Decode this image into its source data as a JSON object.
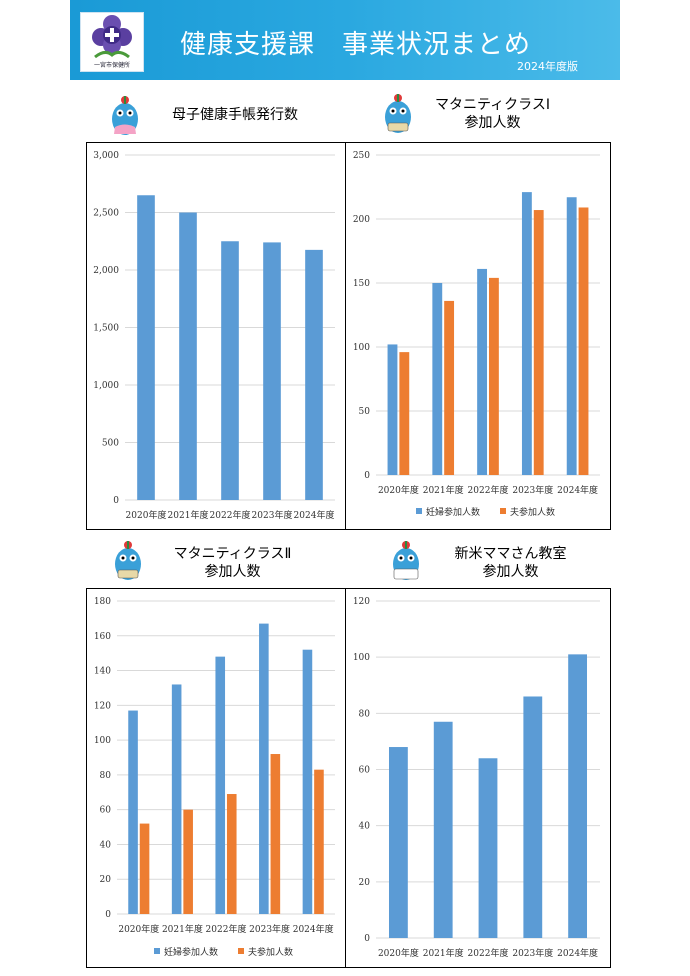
{
  "header": {
    "logo_caption": "一宮市保健所",
    "title": "健康支援課　事業状況まとめ",
    "edition": "2024年度版"
  },
  "colors": {
    "blue": "#5b9bd5",
    "orange": "#ed7d31",
    "banner": "#1a9ad6"
  },
  "icons": {
    "logo": "plus-flower-icon",
    "mascot": "mascot-character-icon"
  },
  "charts": {
    "handbook": {
      "heading_line1": "母子健康手帳発行数",
      "heading_line2": ""
    },
    "class1": {
      "heading_line1": "マタニティクラスⅠ",
      "heading_line2": "参加人数"
    },
    "class2": {
      "heading_line1": "マタニティクラスⅡ",
      "heading_line2": "参加人数"
    },
    "newmama": {
      "heading_line1": "新米ママさん教室",
      "heading_line2": "参加人数"
    }
  },
  "chart_data": [
    {
      "id": "handbook",
      "type": "bar",
      "categories": [
        "2020年度",
        "2021年度",
        "2022年度",
        "2023年度",
        "2024年度"
      ],
      "series": [
        {
          "values": [
            2650,
            2500,
            2250,
            2240,
            2175
          ],
          "color": "#5b9bd5"
        }
      ],
      "ylim": [
        0,
        3000
      ],
      "yticks": [
        0,
        500,
        1000,
        1500,
        2000,
        2500,
        3000
      ],
      "tick_labels": [
        "0",
        "500",
        "1,000",
        "1,500",
        "2,000",
        "2,500",
        "3,000"
      ],
      "grid": true,
      "legend": "none"
    },
    {
      "id": "class1",
      "type": "bar",
      "categories": [
        "2020年度",
        "2021年度",
        "2022年度",
        "2023年度",
        "2024年度"
      ],
      "series": [
        {
          "name": "妊婦参加人数",
          "values": [
            102,
            150,
            161,
            221,
            217
          ],
          "color": "#5b9bd5"
        },
        {
          "name": "夫参加人数",
          "values": [
            96,
            136,
            154,
            207,
            209
          ],
          "color": "#ed7d31"
        }
      ],
      "ylim": [
        0,
        250
      ],
      "yticks": [
        0,
        50,
        100,
        150,
        200,
        250
      ],
      "tick_labels": [
        "0",
        "50",
        "100",
        "150",
        "200",
        "250"
      ],
      "grid": true,
      "legend": "bottom"
    },
    {
      "id": "class2",
      "type": "bar",
      "categories": [
        "2020年度",
        "2021年度",
        "2022年度",
        "2023年度",
        "2024年度"
      ],
      "series": [
        {
          "name": "妊婦参加人数",
          "values": [
            117,
            132,
            148,
            167,
            152
          ],
          "color": "#5b9bd5"
        },
        {
          "name": "夫参加人数",
          "values": [
            52,
            60,
            69,
            92,
            83
          ],
          "color": "#ed7d31"
        }
      ],
      "ylim": [
        0,
        180
      ],
      "yticks": [
        0,
        20,
        40,
        60,
        80,
        100,
        120,
        140,
        160,
        180
      ],
      "tick_labels": [
        "0",
        "20",
        "40",
        "60",
        "80",
        "100",
        "120",
        "140",
        "160",
        "180"
      ],
      "grid": true,
      "legend": "bottom"
    },
    {
      "id": "newmama",
      "type": "bar",
      "categories": [
        "2020年度",
        "2021年度",
        "2022年度",
        "2023年度",
        "2024年度"
      ],
      "series": [
        {
          "values": [
            68,
            77,
            64,
            86,
            101
          ],
          "color": "#5b9bd5"
        }
      ],
      "ylim": [
        0,
        120
      ],
      "yticks": [
        0,
        20,
        40,
        60,
        80,
        100,
        120
      ],
      "tick_labels": [
        "0",
        "20",
        "40",
        "60",
        "80",
        "100",
        "120"
      ],
      "grid": true,
      "legend": "none"
    }
  ]
}
